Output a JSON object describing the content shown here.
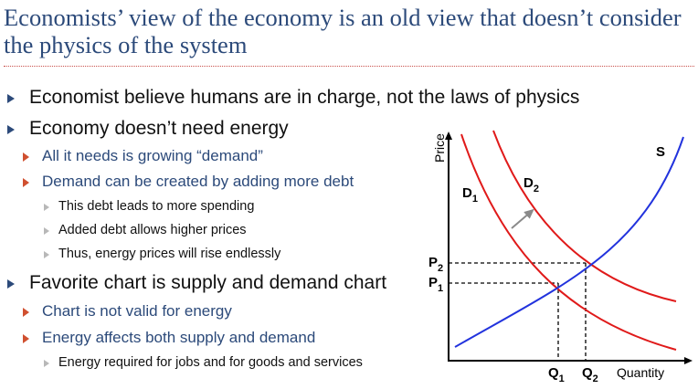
{
  "slide": {
    "title": "Economists’ view of the economy is an old view that doesn’t consider the physics of the system",
    "bullets": [
      {
        "level": 1,
        "text": "Economist believe humans are in charge, not the laws of physics"
      },
      {
        "level": 1,
        "text": "Economy doesn’t need energy"
      },
      {
        "level": 2,
        "text": "All it needs is growing “demand”"
      },
      {
        "level": 2,
        "text": "Demand can be created by adding more debt"
      },
      {
        "level": 3,
        "text": "This debt leads to more spending"
      },
      {
        "level": 3,
        "text": "Added debt allows higher prices"
      },
      {
        "level": 3,
        "text": "Thus, energy prices will rise endlessly"
      },
      {
        "level": 1,
        "text": "Favorite chart is supply and demand chart"
      },
      {
        "level": 2,
        "text": "Chart is not valid for energy"
      },
      {
        "level": 2,
        "text": "Energy affects both supply and demand"
      },
      {
        "level": 3,
        "text": "Energy required for jobs and for goods and services"
      }
    ]
  },
  "chart": {
    "y_axis_label": "Price",
    "x_axis_label": "Quantity",
    "curves": {
      "supply": "S",
      "demand1": "D",
      "demand1_sub": "1",
      "demand2": "D",
      "demand2_sub": "2"
    },
    "price_labels": {
      "p2": "P",
      "p2_sub": "2",
      "p1": "P",
      "p1_sub": "1"
    },
    "quantity_labels": {
      "q1": "Q",
      "q1_sub": "1",
      "q2": "Q",
      "q2_sub": "2"
    },
    "colors": {
      "supply": "#2233dd",
      "demand": "#e01a1a",
      "axis": "#000000",
      "shift_arrow": "#8a8a8a",
      "title": "#2c4a7a",
      "rule": "#c8504a"
    }
  }
}
